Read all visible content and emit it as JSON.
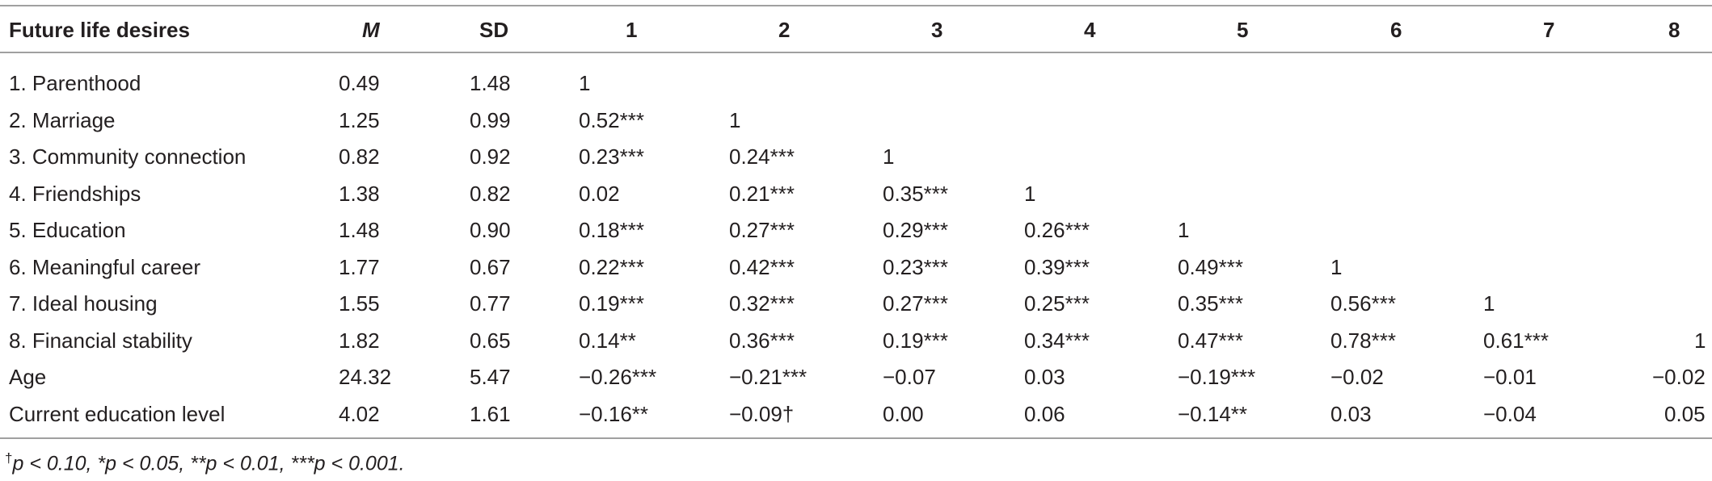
{
  "table": {
    "header": [
      "Future life desires",
      "M",
      "SD",
      "1",
      "2",
      "3",
      "4",
      "5",
      "6",
      "7",
      "8"
    ],
    "rows": [
      [
        "1. Parenthood",
        "0.49",
        "1.48",
        "1",
        "",
        "",
        "",
        "",
        "",
        "",
        ""
      ],
      [
        "2. Marriage",
        "1.25",
        "0.99",
        "0.52***",
        "1",
        "",
        "",
        "",
        "",
        "",
        ""
      ],
      [
        "3. Community connection",
        "0.82",
        "0.92",
        "0.23***",
        "0.24***",
        "1",
        "",
        "",
        "",
        "",
        ""
      ],
      [
        "4. Friendships",
        "1.38",
        "0.82",
        "0.02",
        "0.21***",
        "0.35***",
        "1",
        "",
        "",
        "",
        ""
      ],
      [
        "5. Education",
        "1.48",
        "0.90",
        "0.18***",
        "0.27***",
        "0.29***",
        "0.26***",
        "1",
        "",
        "",
        ""
      ],
      [
        "6. Meaningful career",
        "1.77",
        "0.67",
        "0.22***",
        "0.42***",
        "0.23***",
        "0.39***",
        "0.49***",
        "1",
        "",
        ""
      ],
      [
        "7. Ideal housing",
        "1.55",
        "0.77",
        "0.19***",
        "0.32***",
        "0.27***",
        "0.25***",
        "0.35***",
        "0.56***",
        "1",
        ""
      ],
      [
        "8. Financial stability",
        "1.82",
        "0.65",
        "0.14**",
        "0.36***",
        "0.19***",
        "0.34***",
        "0.47***",
        "0.78***",
        "0.61***",
        "1"
      ],
      [
        "Age",
        "24.32",
        "5.47",
        "−0.26***",
        "−0.21***",
        "−0.07",
        "0.03",
        "−0.19***",
        "−0.02",
        "−0.01",
        "−0.02"
      ],
      [
        "Current education level",
        "4.02",
        "1.61",
        "−0.16**",
        "−0.09†",
        "0.00",
        "0.06",
        "−0.14**",
        "0.03",
        "−0.04",
        "0.05"
      ]
    ]
  },
  "footnote": {
    "mark": "†",
    "text": "p < 0.10, *p < 0.05, **p < 0.01, ***p < 0.001."
  }
}
